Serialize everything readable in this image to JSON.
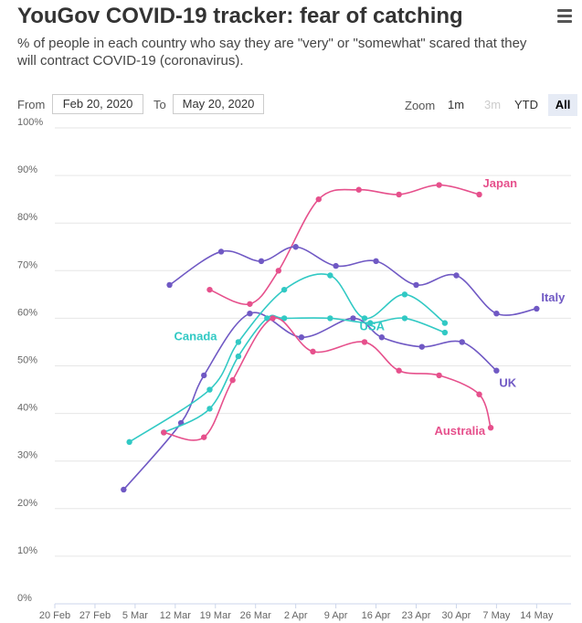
{
  "header": {
    "title": "YouGov COVID-19 tracker: fear of catching",
    "subtitle": "% of people in each country who say they are \"very\" or \"somewhat\" scared that they will contract COVID-19 (coronavirus)."
  },
  "range": {
    "from_label": "From",
    "from_value": "Feb 20, 2020",
    "to_label": "To",
    "to_value": "May 20, 2020"
  },
  "zoom": {
    "label": "Zoom",
    "buttons": [
      {
        "label": "1m",
        "state": "normal"
      },
      {
        "label": "3m",
        "state": "disabled"
      },
      {
        "label": "YTD",
        "state": "normal"
      },
      {
        "label": "All",
        "state": "active"
      }
    ]
  },
  "chart_data": {
    "type": "line",
    "title": "YouGov COVID-19 tracker: fear of catching",
    "xlabel": "",
    "ylabel": "",
    "x_axis_type": "date",
    "xlim": [
      "2020-02-20",
      "2020-05-20"
    ],
    "ylim": [
      0,
      100
    ],
    "y_ticks": [
      "0%",
      "10%",
      "20%",
      "30%",
      "40%",
      "50%",
      "60%",
      "70%",
      "80%",
      "90%",
      "100%"
    ],
    "x_ticks": [
      {
        "date": "2020-02-20",
        "label": "20 Feb"
      },
      {
        "date": "2020-02-27",
        "label": "27 Feb"
      },
      {
        "date": "2020-03-05",
        "label": "5 Mar"
      },
      {
        "date": "2020-03-12",
        "label": "12 Mar"
      },
      {
        "date": "2020-03-19",
        "label": "19 Mar"
      },
      {
        "date": "2020-03-26",
        "label": "26 Mar"
      },
      {
        "date": "2020-04-02",
        "label": "2 Apr"
      },
      {
        "date": "2020-04-09",
        "label": "9 Apr"
      },
      {
        "date": "2020-04-16",
        "label": "16 Apr"
      },
      {
        "date": "2020-04-23",
        "label": "23 Apr"
      },
      {
        "date": "2020-04-30",
        "label": "30 Apr"
      },
      {
        "date": "2020-05-07",
        "label": "7 May"
      },
      {
        "date": "2020-05-14",
        "label": "14 May"
      }
    ],
    "grid": true,
    "legend": "inline labels",
    "series": [
      {
        "name": "Japan",
        "color": "#e6508c",
        "label_at": "end",
        "points": [
          {
            "x": "2020-03-18",
            "y": 66
          },
          {
            "x": "2020-03-25",
            "y": 63
          },
          {
            "x": "2020-03-30",
            "y": 70
          },
          {
            "x": "2020-04-06",
            "y": 85
          },
          {
            "x": "2020-04-13",
            "y": 87
          },
          {
            "x": "2020-04-20",
            "y": 86
          },
          {
            "x": "2020-04-27",
            "y": 88
          },
          {
            "x": "2020-05-04",
            "y": 86
          }
        ]
      },
      {
        "name": "Italy",
        "color": "#7059c4",
        "label_at": "end",
        "points": [
          {
            "x": "2020-03-11",
            "y": 67
          },
          {
            "x": "2020-03-20",
            "y": 74
          },
          {
            "x": "2020-03-27",
            "y": 72
          },
          {
            "x": "2020-04-02",
            "y": 75
          },
          {
            "x": "2020-04-09",
            "y": 71
          },
          {
            "x": "2020-04-16",
            "y": 72
          },
          {
            "x": "2020-04-23",
            "y": 67
          },
          {
            "x": "2020-04-30",
            "y": 69
          },
          {
            "x": "2020-05-07",
            "y": 61
          },
          {
            "x": "2020-05-14",
            "y": 62
          }
        ]
      },
      {
        "name": "UK",
        "color": "#7059c4",
        "label_at": "end",
        "points": [
          {
            "x": "2020-03-03",
            "y": 24
          },
          {
            "x": "2020-03-13",
            "y": 38
          },
          {
            "x": "2020-03-17",
            "y": 48
          },
          {
            "x": "2020-03-25",
            "y": 61
          },
          {
            "x": "2020-04-03",
            "y": 56
          },
          {
            "x": "2020-04-12",
            "y": 60
          },
          {
            "x": "2020-04-17",
            "y": 56
          },
          {
            "x": "2020-04-24",
            "y": 54
          },
          {
            "x": "2020-05-01",
            "y": 55
          },
          {
            "x": "2020-05-07",
            "y": 49
          }
        ]
      },
      {
        "name": "Canada",
        "color": "#31c9c4",
        "label_at": "start",
        "points": [
          {
            "x": "2020-03-04",
            "y": 34
          },
          {
            "x": "2020-03-18",
            "y": 45
          },
          {
            "x": "2020-03-23",
            "y": 55
          },
          {
            "x": "2020-03-31",
            "y": 66
          },
          {
            "x": "2020-04-08",
            "y": 69
          },
          {
            "x": "2020-04-14",
            "y": 60
          },
          {
            "x": "2020-04-21",
            "y": 65
          },
          {
            "x": "2020-04-28",
            "y": 59
          }
        ]
      },
      {
        "name": "USA",
        "color": "#31c9c4",
        "label_at": "mid",
        "points": [
          {
            "x": "2020-03-10",
            "y": 36
          },
          {
            "x": "2020-03-18",
            "y": 41
          },
          {
            "x": "2020-03-23",
            "y": 52
          },
          {
            "x": "2020-03-28",
            "y": 60
          },
          {
            "x": "2020-03-31",
            "y": 60
          },
          {
            "x": "2020-04-08",
            "y": 60
          },
          {
            "x": "2020-04-15",
            "y": 59
          },
          {
            "x": "2020-04-21",
            "y": 60
          },
          {
            "x": "2020-04-28",
            "y": 57
          }
        ]
      },
      {
        "name": "Australia",
        "color": "#e6508c",
        "label_at": "end",
        "points": [
          {
            "x": "2020-03-10",
            "y": 36
          },
          {
            "x": "2020-03-17",
            "y": 35
          },
          {
            "x": "2020-03-22",
            "y": 47
          },
          {
            "x": "2020-03-29",
            "y": 60
          },
          {
            "x": "2020-04-05",
            "y": 53
          },
          {
            "x": "2020-04-14",
            "y": 55
          },
          {
            "x": "2020-04-20",
            "y": 49
          },
          {
            "x": "2020-04-27",
            "y": 48
          },
          {
            "x": "2020-05-04",
            "y": 44
          },
          {
            "x": "2020-05-06",
            "y": 37
          }
        ]
      }
    ]
  }
}
